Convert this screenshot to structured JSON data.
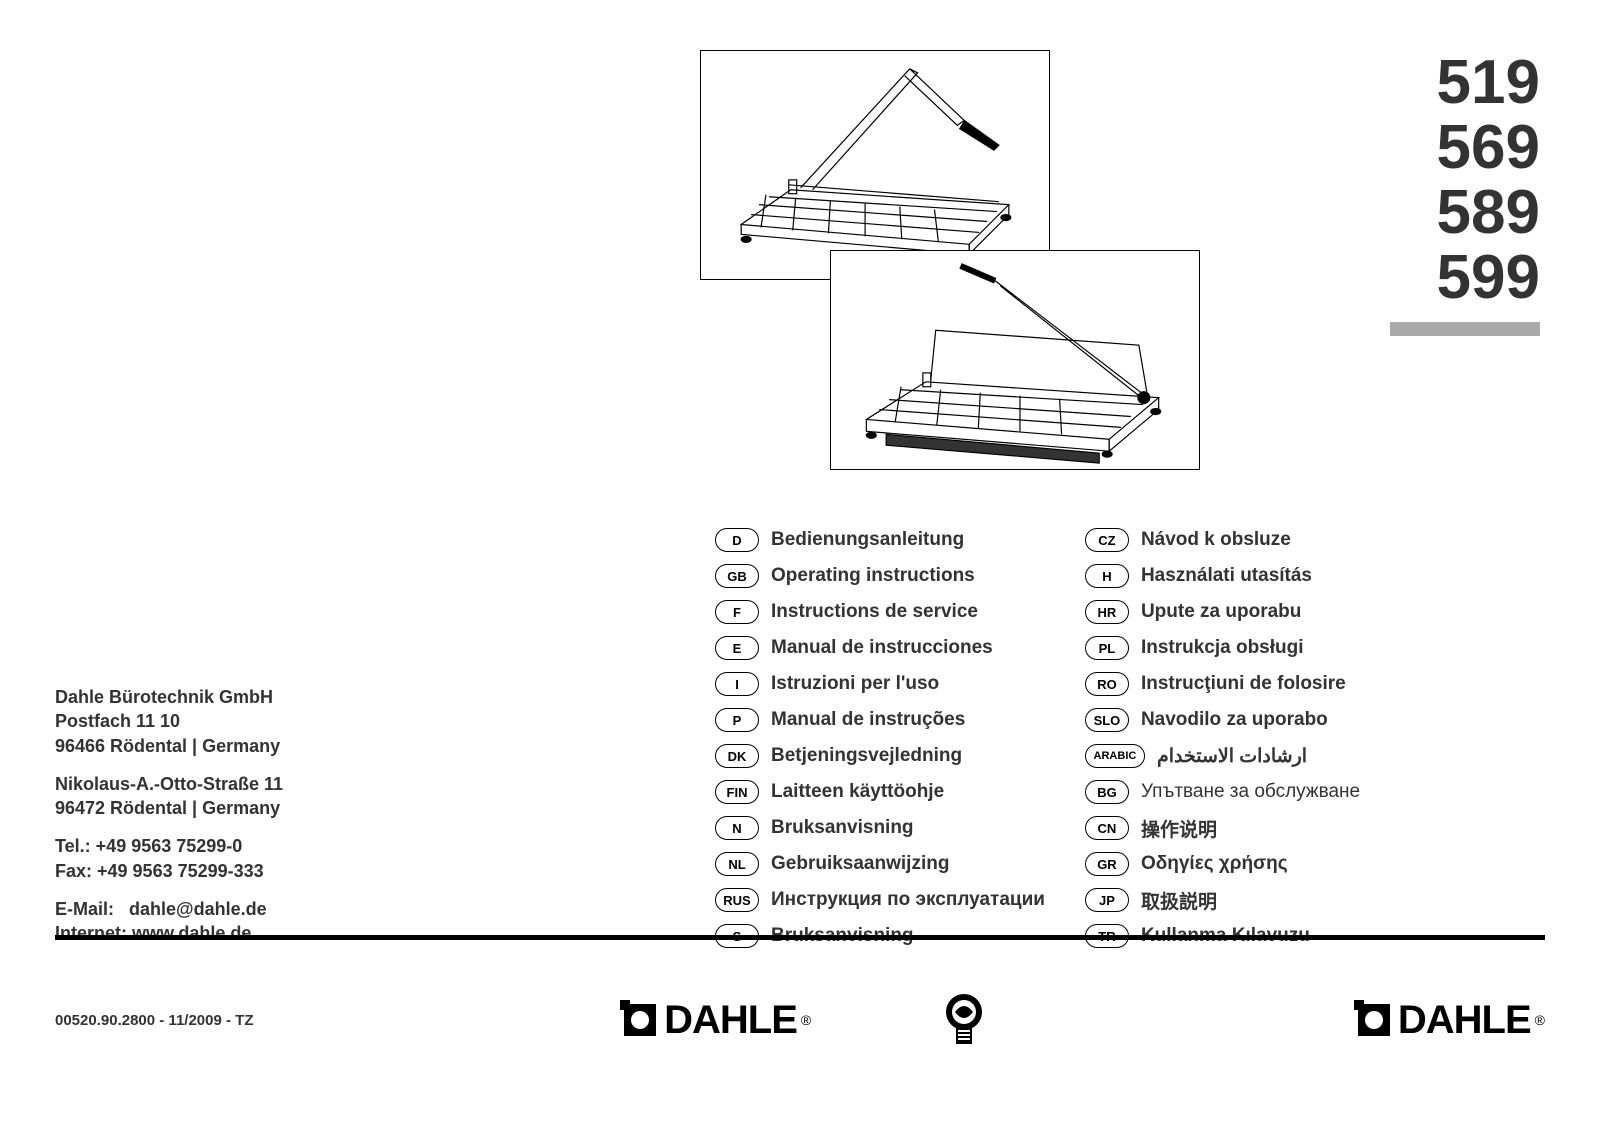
{
  "models": [
    "519",
    "569",
    "589",
    "599"
  ],
  "models_color": "#333333",
  "models_fontsize": 62,
  "bar_color": "#aaaaaa",
  "address": {
    "company": "Dahle Bürotechnik GmbH",
    "postbox": "Postfach 11 10",
    "city1": "96466 Rödental | Germany",
    "street": "Nikolaus-A.-Otto-Straße 11",
    "city2": "96472 Rödental | Germany",
    "tel": "Tel.: +49 9563 75299-0",
    "fax": "Fax: +49 9563 75299-333",
    "email_label": "E-Mail:",
    "email": "dahle@dahle.de",
    "web_label": "Internet:",
    "web": "www.dahle.de"
  },
  "languages_col1": [
    {
      "code": "D",
      "label": "Bedienungsanleitung"
    },
    {
      "code": "GB",
      "label": "Operating instructions"
    },
    {
      "code": "F",
      "label": "Instructions de service"
    },
    {
      "code": "E",
      "label": "Manual de instrucciones"
    },
    {
      "code": "I",
      "label": "Istruzioni per l'uso"
    },
    {
      "code": "P",
      "label": "Manual de instruções"
    },
    {
      "code": "DK",
      "label": "Betjeningsvejledning"
    },
    {
      "code": "FIN",
      "label": "Laitteen käyttöohje"
    },
    {
      "code": "N",
      "label": "Bruksanvisning"
    },
    {
      "code": "NL",
      "label": "Gebruiksaanwijzing"
    },
    {
      "code": "RUS",
      "label": "Инструкция по эксплуатации"
    },
    {
      "code": "S",
      "label": "Bruksanvisning"
    }
  ],
  "languages_col2": [
    {
      "code": "CZ",
      "label": "Návod k obsluze"
    },
    {
      "code": "H",
      "label": "Használati utasítás"
    },
    {
      "code": "HR",
      "label": "Upute za uporabu"
    },
    {
      "code": "PL",
      "label": "Instrukcja obsługi"
    },
    {
      "code": "RO",
      "label": "Instrucţiuni de folosire"
    },
    {
      "code": "SLO",
      "label": "Navodilo za uporabo"
    },
    {
      "code": "ARABIC",
      "label": "ارشادات الاستخدام",
      "wide": true
    },
    {
      "code": "BG",
      "label": "Упътване за обслужване",
      "normal": true
    },
    {
      "code": "CN",
      "label": "操作说明"
    },
    {
      "code": "GR",
      "label": "Οδηγίες χρήσης"
    },
    {
      "code": "JP",
      "label": "取扱説明"
    },
    {
      "code": "TR",
      "label": "Kullanma Kılavuzu"
    }
  ],
  "doc_code": "00520.90.2800 - 11/2009 - TZ",
  "logo_text": "DAHLE",
  "rule_color": "#000000"
}
